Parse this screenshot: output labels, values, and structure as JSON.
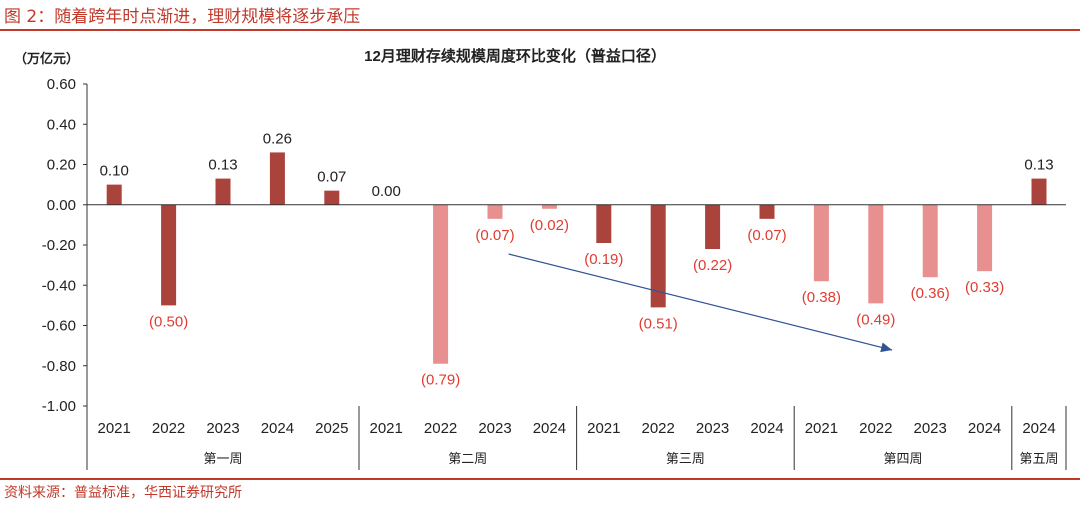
{
  "figure_title": "图 2：随着跨年时点渐进，理财规模将逐步承压",
  "source_note": "资料来源：普益标准，华西证券研究所",
  "colors": {
    "dark_bar": "#a9433b",
    "light_bar": "#e88f8f",
    "negative_label": "#e03c31",
    "positive_label": "#222222",
    "arrow": "#2f5597",
    "accent": "#c0392b"
  },
  "chart_data": {
    "type": "bar",
    "title": "12月理财存续规模周度环比变化（普益口径）",
    "ylabel": "（万亿元）",
    "ylim": [
      -1.0,
      0.6
    ],
    "yticks": [
      0.6,
      0.4,
      0.2,
      0.0,
      -0.2,
      -0.4,
      -0.6,
      -0.8,
      -1.0
    ],
    "ytick_labels": [
      "0.60",
      "0.40",
      "0.20",
      "0.00",
      "-0.20",
      "-0.40",
      "-0.60",
      "-0.80",
      "-1.00"
    ],
    "groups": [
      {
        "name": "第一周",
        "years": [
          "2021",
          "2022",
          "2023",
          "2024",
          "2025"
        ],
        "values": [
          0.1,
          -0.5,
          0.13,
          0.26,
          0.07
        ],
        "labels": [
          "0.10",
          "(0.50)",
          "0.13",
          "0.26",
          "0.07"
        ],
        "tone": [
          "dark",
          "dark",
          "dark",
          "dark",
          "dark"
        ]
      },
      {
        "name": "第二周",
        "years": [
          "2021",
          "2022",
          "2023",
          "2024"
        ],
        "values": [
          0.0,
          -0.79,
          -0.07,
          -0.02
        ],
        "labels": [
          "0.00",
          "(0.79)",
          "(0.07)",
          "(0.02)"
        ],
        "tone": [
          "light",
          "light",
          "light",
          "light"
        ]
      },
      {
        "name": "第三周",
        "years": [
          "2021",
          "2022",
          "2023",
          "2024"
        ],
        "values": [
          -0.19,
          -0.51,
          -0.22,
          -0.07
        ],
        "labels": [
          "(0.19)",
          "(0.51)",
          "(0.22)",
          "(0.07)"
        ],
        "tone": [
          "dark",
          "dark",
          "dark",
          "dark"
        ]
      },
      {
        "name": "第四周",
        "years": [
          "2021",
          "2022",
          "2023",
          "2024"
        ],
        "values": [
          -0.38,
          -0.49,
          -0.36,
          -0.33
        ],
        "labels": [
          "(0.38)",
          "(0.49)",
          "(0.36)",
          "(0.33)"
        ],
        "tone": [
          "light",
          "light",
          "light",
          "light"
        ]
      },
      {
        "name": "第五周",
        "years": [
          "2024"
        ],
        "values": [
          0.13
        ],
        "labels": [
          "0.13"
        ],
        "tone": [
          "dark"
        ]
      }
    ],
    "annotations": [
      {
        "type": "trend-arrow",
        "description": "downward trend from 第二周 to 第四周"
      }
    ]
  }
}
